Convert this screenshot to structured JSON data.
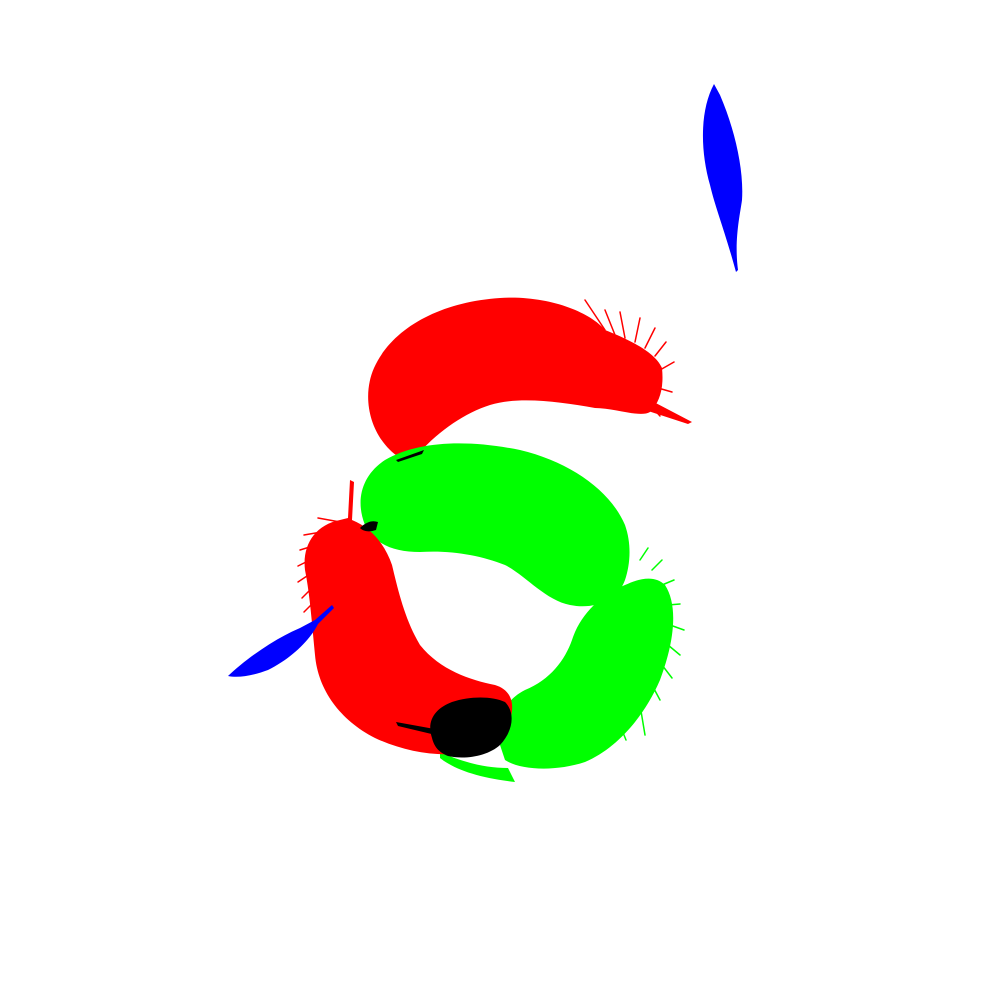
{
  "scene": {
    "background": "#ffffff",
    "feathers": [
      {
        "name": "blue-feather-top-right",
        "color": "#0000ff"
      },
      {
        "name": "red-feather-top-arc",
        "color": "#ff0000"
      },
      {
        "name": "green-feather-upper-arc",
        "color": "#00ff00"
      },
      {
        "name": "green-feather-right-arc",
        "color": "#00ff00"
      },
      {
        "name": "red-feather-left-arc",
        "color": "#ff0000"
      },
      {
        "name": "blue-feather-bottom-left",
        "color": "#0000ff"
      },
      {
        "name": "black-feather-bottom",
        "color": "#000000"
      }
    ]
  }
}
